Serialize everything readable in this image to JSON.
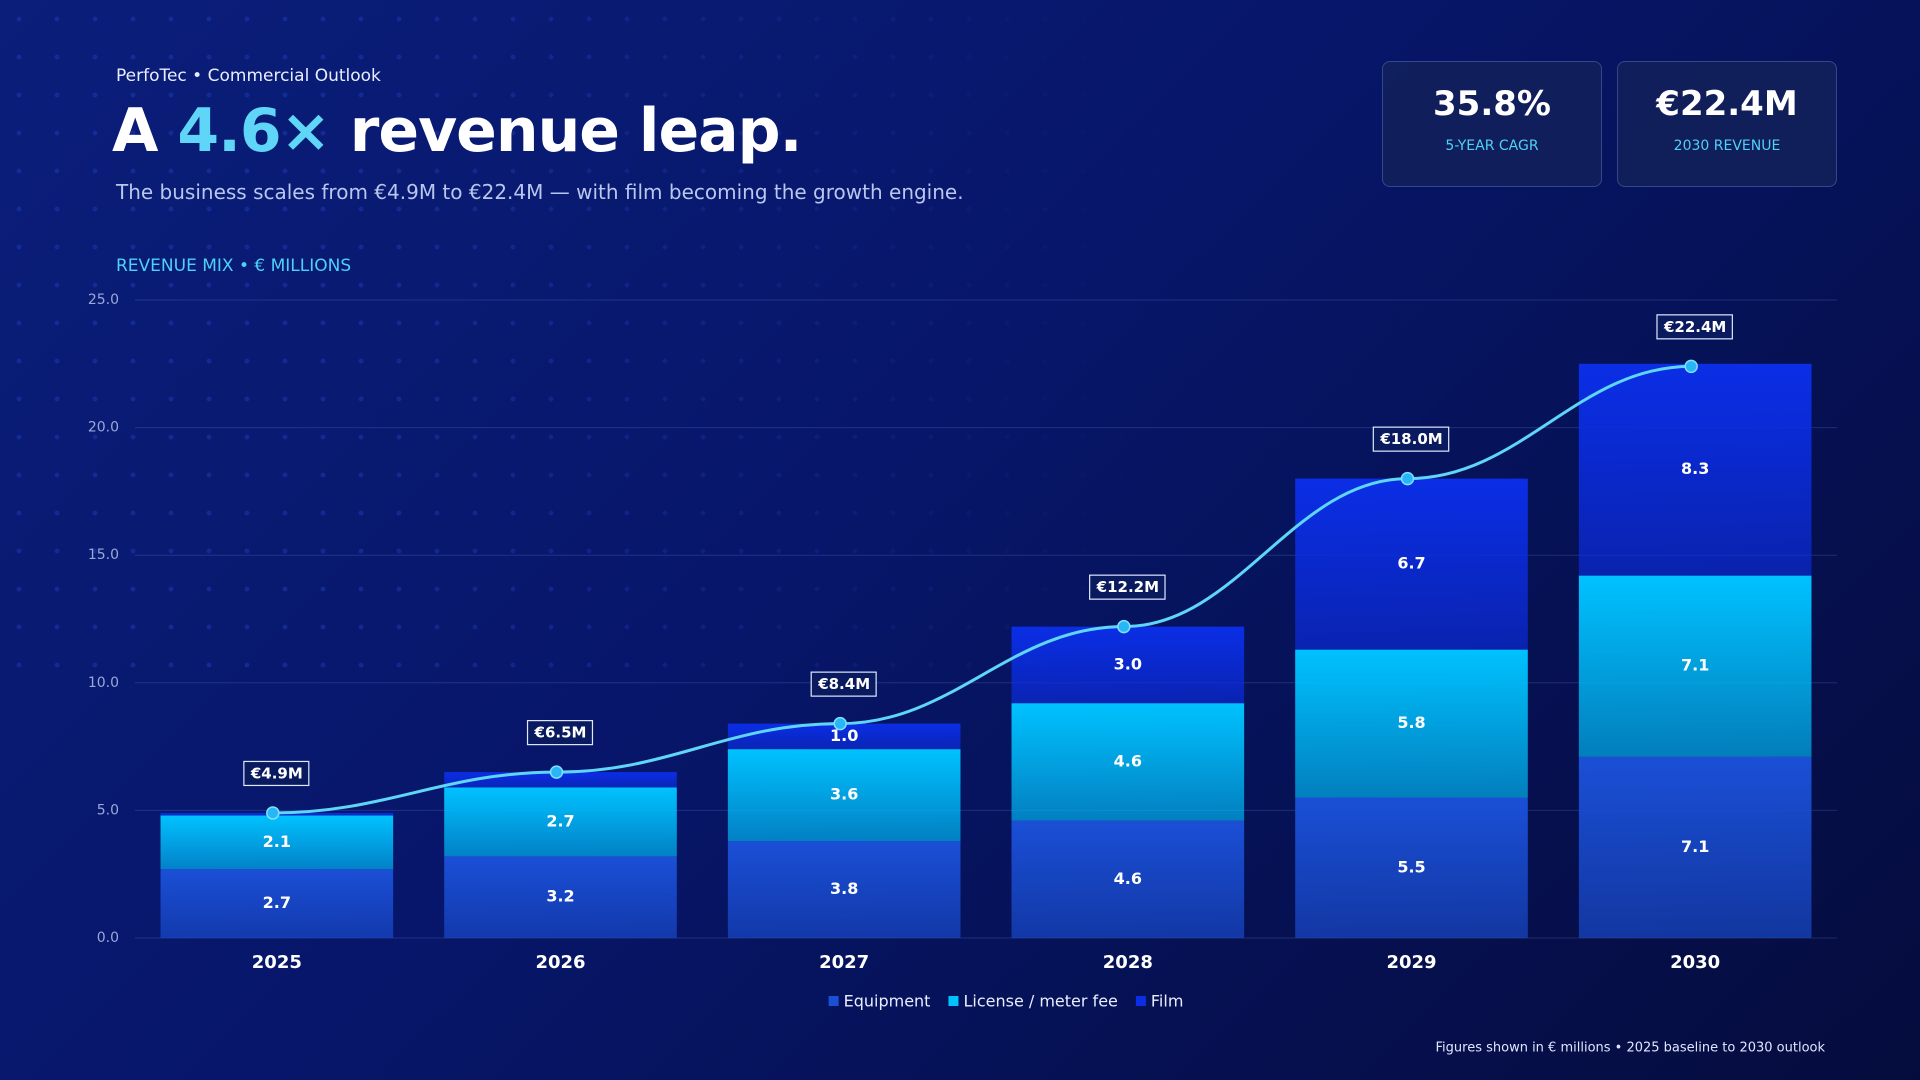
{
  "header": {
    "eyebrow": "PerfoTec • Commercial Outlook",
    "title_prefix": "A",
    "title_highlight": "4.6×",
    "title_suffix": "revenue leap.",
    "subtitle": "The business scales from €4.9M to €22.4M — with film becoming the growth engine."
  },
  "kpis": [
    {
      "value": "35.8%",
      "label": "5-YEAR CAGR"
    },
    {
      "value": "€22.4M",
      "label": "2030 REVENUE"
    }
  ],
  "chart_data": {
    "type": "stacked-bar-line",
    "title": "REVENUE MIX • € MILLIONS",
    "categories": [
      "2025",
      "2026",
      "2027",
      "2028",
      "2029",
      "2030"
    ],
    "series": [
      {
        "name": "Equipment",
        "color": "#1a4fd6",
        "values": [
          2.7,
          3.2,
          3.8,
          4.6,
          5.5,
          7.1
        ]
      },
      {
        "name": "License / meter fee",
        "color": "#00c2ff",
        "values": [
          2.1,
          2.7,
          3.6,
          4.6,
          5.8,
          7.1
        ]
      },
      {
        "name": "Film",
        "color": "#0b2ee6",
        "values": [
          0.1,
          0.6,
          1.0,
          3.0,
          6.7,
          8.3
        ],
        "value_labels": [
          null,
          null,
          "1.0",
          "3.0",
          "6.7",
          "8.3"
        ]
      }
    ],
    "total": {
      "color": "#5fd6f7",
      "values": [
        4.9,
        6.5,
        8.4,
        12.2,
        18.0,
        22.4
      ],
      "value_labels": [
        "€4.9M",
        "€6.5M",
        "€8.4M",
        "€12.2M",
        "€18.0M",
        "€22.4M"
      ]
    },
    "ylim": [
      0,
      25
    ],
    "yticks": [
      {
        "value": 0,
        "label": "0.0"
      },
      {
        "value": 5,
        "label": "5.0"
      },
      {
        "value": 10,
        "label": "10.0"
      },
      {
        "value": 15,
        "label": "15.0"
      },
      {
        "value": 20,
        "label": "20.0"
      },
      {
        "value": 25,
        "label": "25.0"
      }
    ],
    "grid": true,
    "legend": "bottom",
    "footnote": "Figures shown in € millions • 2025 baseline to 2030 outlook"
  }
}
